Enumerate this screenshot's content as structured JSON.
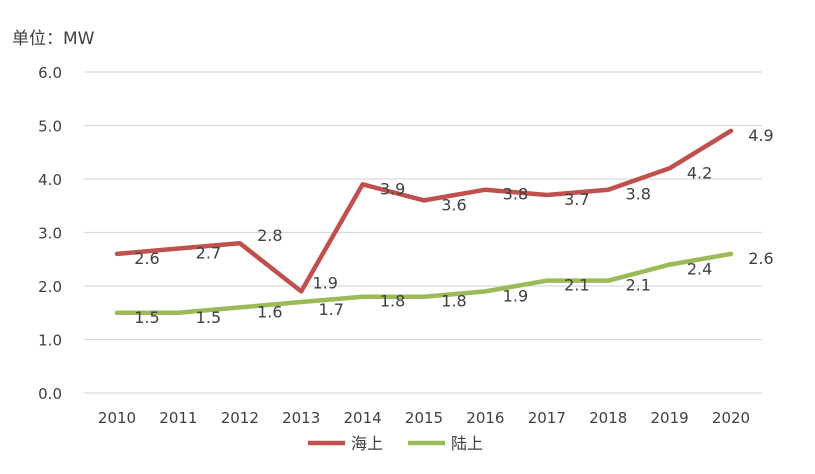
{
  "chart_data": {
    "type": "line",
    "title": "",
    "unit_label": "单位：MW",
    "xlabel": "",
    "ylabel": "",
    "categories": [
      "2010",
      "2011",
      "2012",
      "2013",
      "2014",
      "2015",
      "2016",
      "2017",
      "2018",
      "2019",
      "2020"
    ],
    "ylim": [
      0,
      6
    ],
    "yticks": [
      "0.0",
      "1.0",
      "2.0",
      "3.0",
      "4.0",
      "5.0",
      "6.0"
    ],
    "grid": true,
    "legend_position": "bottom",
    "series": [
      {
        "name": "海上",
        "color": "#C0504D",
        "values": [
          2.6,
          2.7,
          2.8,
          1.9,
          3.9,
          3.6,
          3.8,
          3.7,
          3.8,
          4.2,
          4.9
        ]
      },
      {
        "name": "陆上",
        "color": "#9BBB59",
        "values": [
          1.5,
          1.5,
          1.6,
          1.7,
          1.8,
          1.8,
          1.9,
          2.1,
          2.1,
          2.4,
          2.6
        ]
      }
    ]
  }
}
